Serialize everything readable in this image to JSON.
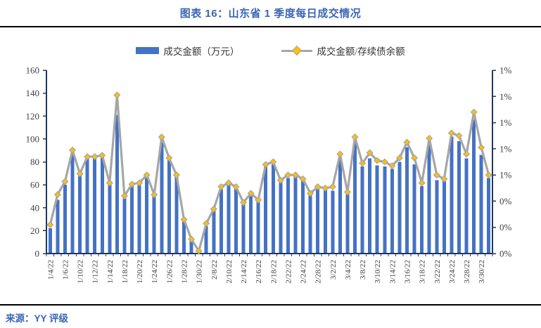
{
  "header": {
    "title": "图表 16：山东省 1 季度每日成交情况"
  },
  "footer": {
    "source": "来源：YY 评级"
  },
  "legend": [
    {
      "label": "成交金额（万元）",
      "type": "bar"
    },
    {
      "label": "成交金额/存续债余额",
      "type": "line"
    }
  ],
  "colors": {
    "bar": "#4472c4",
    "line": "#a6a6a6",
    "marker": "#ffc000",
    "axis": "#1f3864",
    "tick_text": "#404040",
    "title_blue": "#3a66b4"
  },
  "chart_data": {
    "type": "bar+line",
    "title": "图表 16：山东省 1 季度每日成交情况",
    "n_points": 60,
    "label_every": 2,
    "x_tick_labels": [
      "1/4/22",
      "1/6/22",
      "1/10/22",
      "1/12/22",
      "1/14/22",
      "1/18/22",
      "1/20/22",
      "1/24/22",
      "1/26/22",
      "1/28/22",
      "1/30/22",
      "2/8/22",
      "2/10/22",
      "2/14/22",
      "2/16/22",
      "2/18/22",
      "2/22/22",
      "2/24/22",
      "2/28/22",
      "3/2/22",
      "3/4/22",
      "3/8/22",
      "3/10/22",
      "3/14/22",
      "3/16/22",
      "3/18/22",
      "3/22/22",
      "3/24/22",
      "3/28/22",
      "3/30/22"
    ],
    "series": [
      {
        "name": "成交金额（万元）",
        "type": "bar",
        "axis": "left",
        "values": [
          22,
          47,
          60,
          89,
          69,
          83,
          84,
          84,
          60,
          121,
          48,
          60,
          61,
          66,
          50,
          100,
          82,
          67,
          29,
          11,
          2,
          24,
          38,
          56,
          61,
          57,
          43,
          51,
          45,
          77,
          79,
          63,
          66,
          68,
          64,
          52,
          57,
          57,
          55,
          84,
          53,
          97,
          76,
          83,
          77,
          76,
          74,
          80,
          93,
          78,
          59,
          97,
          64,
          63,
          102,
          98,
          83,
          117,
          86,
          66
        ]
      },
      {
        "name": "成交金额/存续债余额",
        "type": "line",
        "axis": "right",
        "marker": "diamond",
        "values_pct": [
          0.22,
          0.45,
          0.55,
          0.79,
          0.61,
          0.74,
          0.74,
          0.75,
          0.54,
          1.21,
          0.44,
          0.53,
          0.54,
          0.6,
          0.45,
          0.89,
          0.73,
          0.6,
          0.26,
          0.11,
          0.02,
          0.23,
          0.34,
          0.51,
          0.54,
          0.51,
          0.39,
          0.46,
          0.41,
          0.68,
          0.7,
          0.56,
          0.6,
          0.6,
          0.57,
          0.46,
          0.51,
          0.5,
          0.51,
          0.76,
          0.47,
          0.89,
          0.69,
          0.77,
          0.71,
          0.7,
          0.67,
          0.73,
          0.85,
          0.73,
          0.54,
          0.88,
          0.6,
          0.57,
          0.92,
          0.9,
          0.76,
          1.08,
          0.81,
          0.6
        ]
      }
    ],
    "left_axis": {
      "min": 0,
      "max": 160,
      "step": 20,
      "tick_labels": [
        "0",
        "20",
        "40",
        "60",
        "80",
        "100",
        "120",
        "140",
        "160"
      ]
    },
    "right_axis": {
      "min": 0,
      "max": 1.4,
      "step": 0.2,
      "tick_labels": [
        "0%",
        "0%",
        "0%",
        "1%",
        "1%",
        "1%",
        "1%",
        "1%"
      ]
    },
    "grid": false,
    "legend_position": "top-center"
  }
}
